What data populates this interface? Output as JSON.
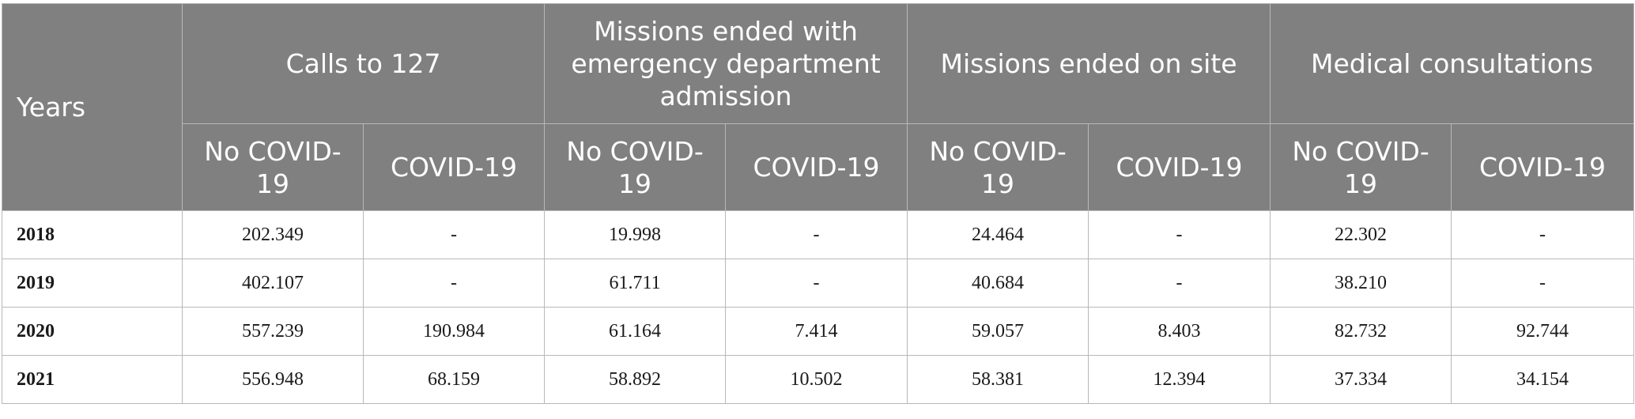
{
  "header": {
    "years": "Years",
    "groups": [
      "Calls to 127",
      "Missions ended with emergency department admission",
      "Missions ended on site",
      "Medical consultations"
    ],
    "no_covid": "No COVID-19",
    "covid": "COVID-19"
  },
  "rows": [
    {
      "year": "2018",
      "cells": [
        "202.349",
        "-",
        "19.998",
        "-",
        "24.464",
        "-",
        "22.302",
        "-"
      ]
    },
    {
      "year": "2019",
      "cells": [
        "402.107",
        "-",
        "61.711",
        "-",
        "40.684",
        "-",
        "38.210",
        "-"
      ]
    },
    {
      "year": "2020",
      "cells": [
        "557.239",
        "190.984",
        "61.164",
        "7.414",
        "59.057",
        "8.403",
        "82.732",
        "92.744"
      ]
    },
    {
      "year": "2021",
      "cells": [
        "556.948",
        "68.159",
        "58.892",
        "10.502",
        "58.381",
        "12.394",
        "37.334",
        "34.154"
      ]
    }
  ]
}
